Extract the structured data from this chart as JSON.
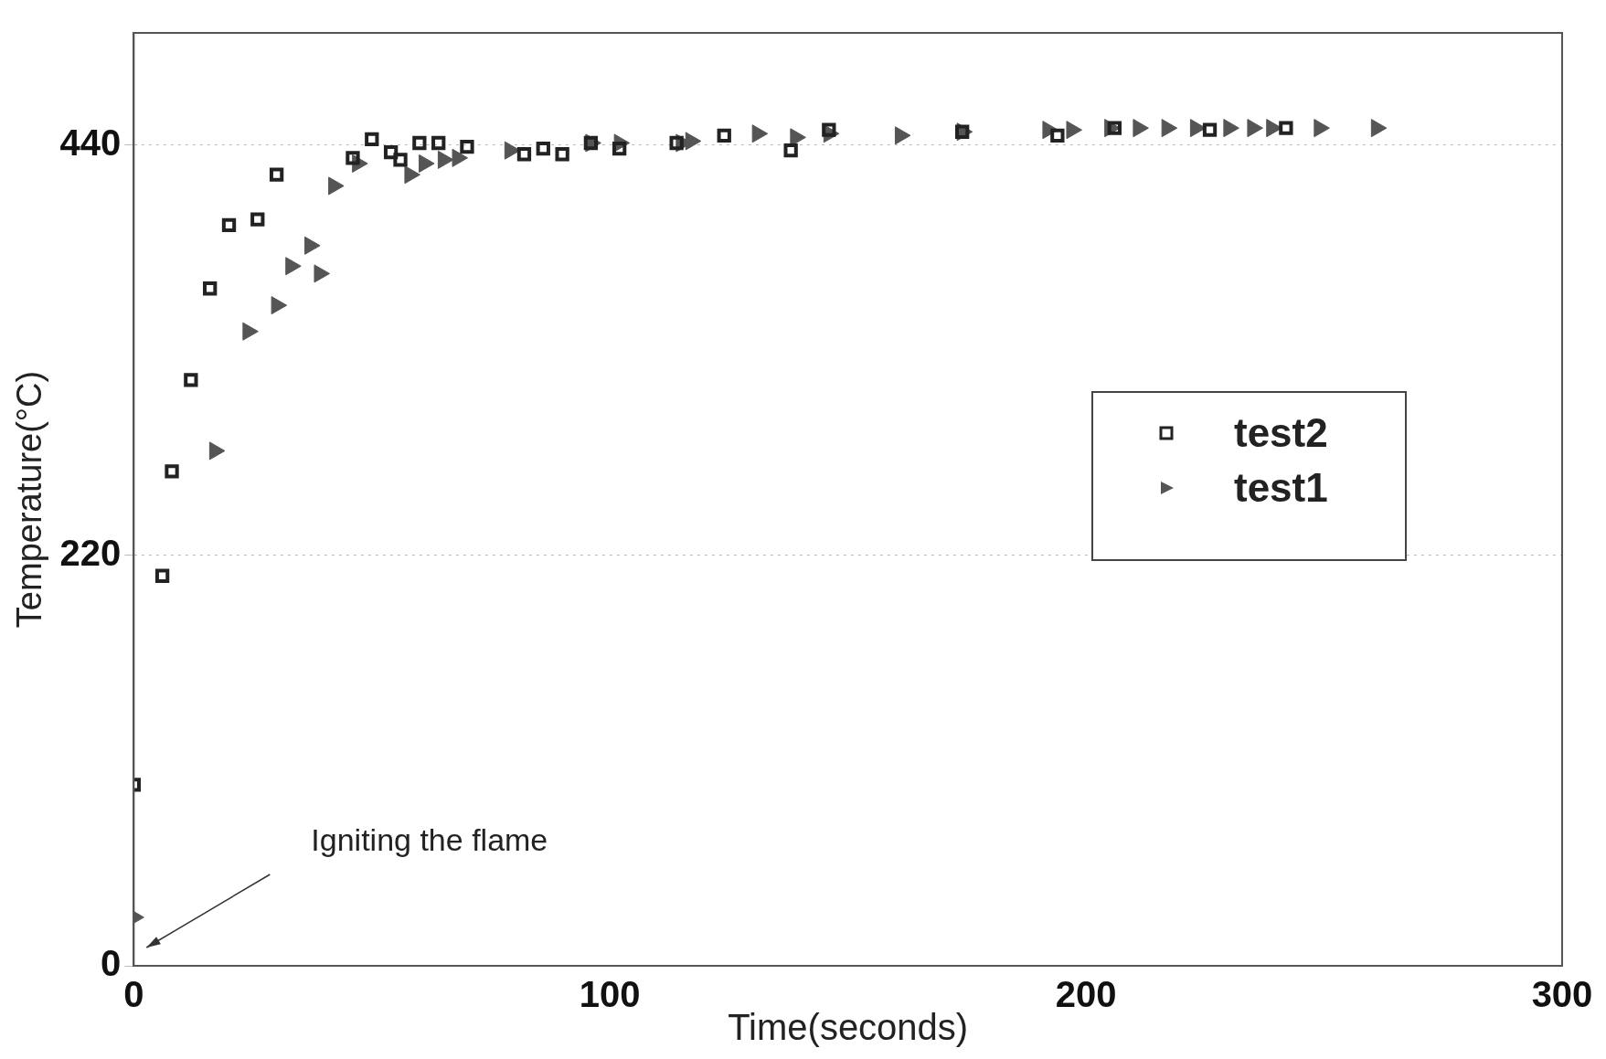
{
  "chart_data": {
    "type": "scatter",
    "xlabel": "Time(seconds)",
    "ylabel": "Temperature(°C)",
    "xlim": [
      0,
      300
    ],
    "xticks": [
      0,
      100,
      200,
      300
    ],
    "ylim": [
      0,
      500
    ],
    "yticks": [
      0,
      220,
      440
    ],
    "grid": "y",
    "legend": "right",
    "annotations": [
      "Igniting the flame"
    ],
    "series": [
      {
        "name": "test2",
        "color": "#222222",
        "marker": "square",
        "x": [
          0,
          6,
          8,
          12,
          16,
          20,
          26,
          30,
          46,
          50,
          54,
          56,
          60,
          64,
          70,
          82,
          86,
          90,
          96,
          102,
          114,
          124,
          138,
          146,
          174,
          194,
          206,
          226,
          242
        ],
        "values": [
          97,
          209,
          265,
          314,
          363,
          397,
          400,
          424,
          433,
          443,
          436,
          432,
          441,
          441,
          439,
          435,
          438,
          435,
          441,
          438,
          441,
          445,
          437,
          448,
          447,
          445,
          449,
          448,
          449
        ]
      },
      {
        "name": "test1",
        "color": "#555555",
        "marker": "triangle",
        "x": [
          0,
          17,
          24,
          30,
          33,
          37,
          39,
          42,
          47,
          58,
          61,
          65,
          68,
          79,
          96,
          102,
          115,
          117,
          131,
          139,
          146,
          161,
          174,
          192,
          197,
          205,
          211,
          217,
          223,
          230,
          235,
          239,
          249,
          261
        ],
        "values": [
          26,
          276,
          340,
          354,
          375,
          386,
          371,
          418,
          430,
          424,
          430,
          432,
          433,
          437,
          441,
          441,
          441,
          442,
          446,
          444,
          446,
          445,
          447,
          448,
          448,
          449,
          449,
          449,
          449,
          449,
          449,
          449,
          449,
          449
        ]
      }
    ]
  }
}
